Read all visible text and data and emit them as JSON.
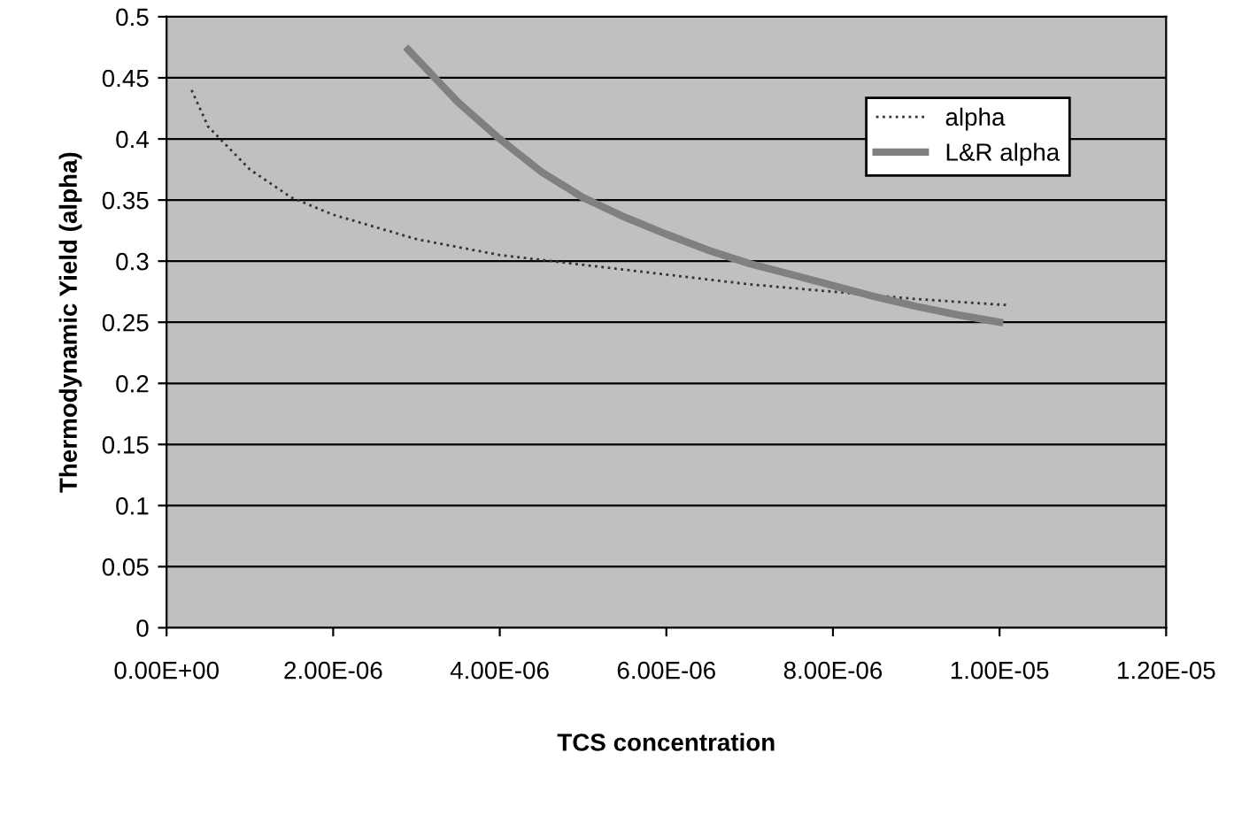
{
  "chart_data": {
    "type": "line",
    "xlabel": "TCS concentration",
    "ylabel": "Thermodynamic Yield (alpha)",
    "series": [
      {
        "name": "alpha",
        "color": "#333333",
        "line_style": "dotted",
        "x": [
          3e-07,
          5e-07,
          1e-06,
          1.5e-06,
          2e-06,
          3e-06,
          4e-06,
          5e-06,
          6e-06,
          7e-06,
          8e-06,
          9e-06,
          1.01e-05
        ],
        "values": [
          0.44,
          0.41,
          0.375,
          0.352,
          0.338,
          0.318,
          0.305,
          0.297,
          0.289,
          0.281,
          0.275,
          0.269,
          0.264
        ]
      },
      {
        "name": "L&R alpha",
        "color": "#808080",
        "line_style": "solid",
        "x": [
          2.9e-06,
          3.5e-06,
          4e-06,
          4.5e-06,
          5e-06,
          5.5e-06,
          6e-06,
          6.5e-06,
          7e-06,
          7.5e-06,
          8e-06,
          8.5e-06,
          9e-06,
          9.5e-06,
          1e-05
        ],
        "values": [
          0.473,
          0.43,
          0.4,
          0.373,
          0.352,
          0.336,
          0.322,
          0.309,
          0.298,
          0.289,
          0.28,
          0.271,
          0.263,
          0.256,
          0.25
        ]
      }
    ],
    "xlim": [
      0,
      1.2e-05
    ],
    "xticks": [
      {
        "value": 0,
        "label": "0.00E+00"
      },
      {
        "value": 2e-06,
        "label": "2.00E-06"
      },
      {
        "value": 4e-06,
        "label": "4.00E-06"
      },
      {
        "value": 6e-06,
        "label": "6.00E-06"
      },
      {
        "value": 8e-06,
        "label": "8.00E-06"
      },
      {
        "value": 1e-05,
        "label": "1.00E-05"
      },
      {
        "value": 1.2e-05,
        "label": "1.20E-05"
      }
    ],
    "ylim": [
      0,
      0.5
    ],
    "yticks": [
      0,
      0.05,
      0.1,
      0.15,
      0.2,
      0.25,
      0.3,
      0.35,
      0.4,
      0.45,
      0.5
    ],
    "grid": "y",
    "legend": "top right",
    "marker": "none"
  }
}
